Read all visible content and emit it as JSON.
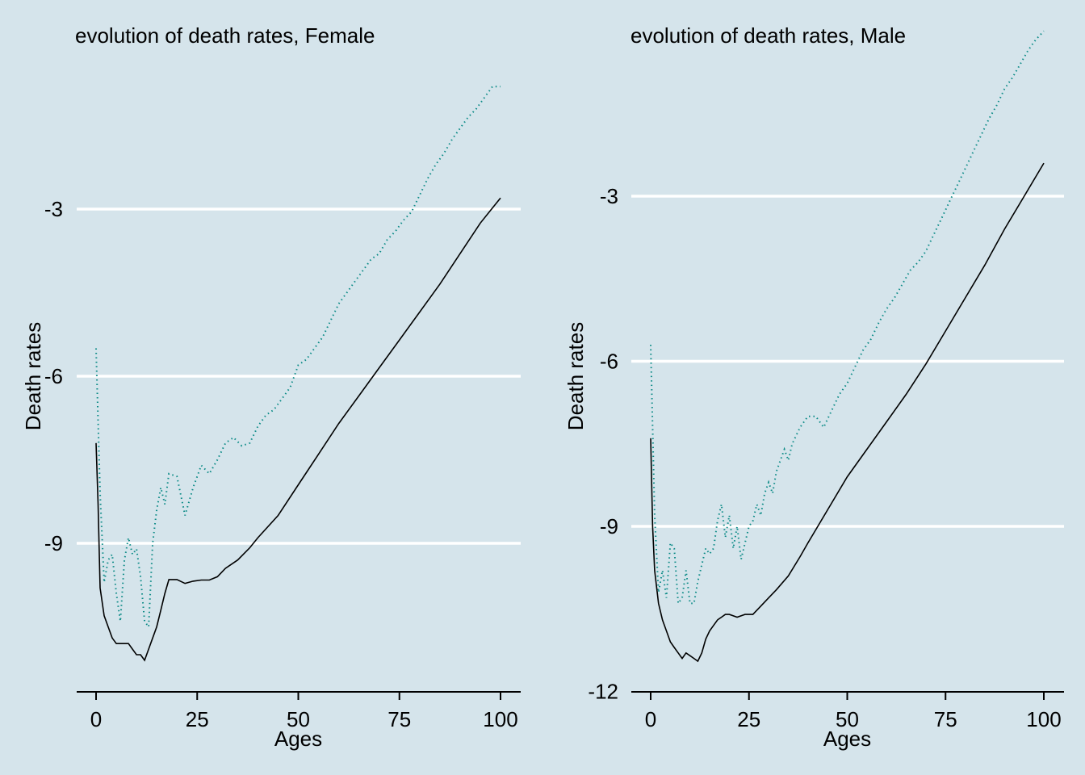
{
  "chart_data": [
    {
      "type": "line",
      "title": "evolution of death rates, Female",
      "xlabel": "Ages",
      "ylabel": "Death rates",
      "xlim": [
        0,
        100
      ],
      "ylim": [
        -11.6,
        -1.0
      ],
      "xticks": [
        0,
        25,
        50,
        75,
        100
      ],
      "yticks": [
        -3,
        -6,
        -9
      ],
      "grid": "horizontal",
      "series": [
        {
          "color": "#000000",
          "dash": "solid",
          "x": [
            0,
            0.5,
            1,
            2,
            3,
            4,
            5,
            6,
            7,
            8,
            9,
            10,
            11,
            12,
            13,
            14,
            15,
            16,
            17,
            18,
            20,
            22,
            24,
            26,
            28,
            30,
            32,
            35,
            38,
            40,
            45,
            50,
            55,
            60,
            65,
            70,
            75,
            80,
            85,
            90,
            95,
            100
          ],
          "y": [
            -7.2,
            -8.3,
            -9.8,
            -10.3,
            -10.5,
            -10.7,
            -10.8,
            -10.8,
            -10.8,
            -10.8,
            -10.9,
            -11.0,
            -11.0,
            -11.1,
            -10.9,
            -10.7,
            -10.5,
            -10.2,
            -9.9,
            -9.65,
            -9.65,
            -9.72,
            -9.68,
            -9.66,
            -9.66,
            -9.6,
            -9.45,
            -9.3,
            -9.08,
            -8.9,
            -8.5,
            -7.95,
            -7.4,
            -6.85,
            -6.35,
            -5.85,
            -5.35,
            -4.85,
            -4.35,
            -3.8,
            -3.25,
            -2.8
          ]
        },
        {
          "color": "#0a8a86",
          "dash": "dotted",
          "x": [
            0,
            0.5,
            1,
            2,
            3,
            4,
            5,
            6,
            7,
            8,
            9,
            10,
            11,
            12,
            13,
            14,
            15,
            16,
            17,
            18,
            20,
            22,
            24,
            26,
            28,
            30,
            32,
            34,
            36,
            38,
            40,
            42,
            44,
            46,
            48,
            50,
            52,
            54,
            56,
            58,
            60,
            62,
            64,
            66,
            68,
            70,
            72,
            74,
            76,
            78,
            80,
            82,
            84,
            86,
            88,
            90,
            92,
            94,
            96,
            98,
            100
          ],
          "y": [
            -5.5,
            -6.8,
            -8.1,
            -9.7,
            -9.3,
            -9.2,
            -9.9,
            -10.4,
            -9.3,
            -8.9,
            -9.2,
            -9.1,
            -9.6,
            -10.4,
            -10.5,
            -9.0,
            -8.4,
            -8.0,
            -8.3,
            -7.75,
            -7.8,
            -8.5,
            -8.0,
            -7.6,
            -7.75,
            -7.5,
            -7.2,
            -7.1,
            -7.25,
            -7.2,
            -6.9,
            -6.7,
            -6.6,
            -6.4,
            -6.2,
            -5.8,
            -5.7,
            -5.5,
            -5.3,
            -5.0,
            -4.7,
            -4.5,
            -4.3,
            -4.1,
            -3.9,
            -3.8,
            -3.55,
            -3.4,
            -3.2,
            -3.05,
            -2.75,
            -2.45,
            -2.2,
            -2.0,
            -1.75,
            -1.55,
            -1.35,
            -1.2,
            -1.0,
            -0.8,
            -0.8
          ]
        }
      ]
    },
    {
      "type": "line",
      "title": "evolution of death rates, Male",
      "xlabel": "Ages",
      "ylabel": "Death rates",
      "xlim": [
        0,
        100
      ],
      "ylim": [
        -12,
        -1.0
      ],
      "xticks": [
        0,
        25,
        50,
        75,
        100
      ],
      "yticks": [
        -3,
        -6,
        -9,
        -12
      ],
      "grid": "horizontal",
      "series": [
        {
          "color": "#000000",
          "dash": "solid",
          "x": [
            0,
            0.5,
            1,
            2,
            3,
            4,
            5,
            6,
            7,
            8,
            9,
            10,
            11,
            12,
            13,
            14,
            15,
            16,
            17,
            18,
            19,
            20,
            22,
            24,
            26,
            28,
            30,
            32,
            35,
            38,
            40,
            45,
            50,
            55,
            60,
            65,
            70,
            75,
            80,
            85,
            90,
            95,
            100
          ],
          "y": [
            -7.4,
            -9.0,
            -9.8,
            -10.4,
            -10.7,
            -10.9,
            -11.1,
            -11.2,
            -11.3,
            -11.4,
            -11.3,
            -11.35,
            -11.4,
            -11.45,
            -11.3,
            -11.05,
            -10.9,
            -10.8,
            -10.7,
            -10.65,
            -10.6,
            -10.6,
            -10.65,
            -10.6,
            -10.6,
            -10.45,
            -10.3,
            -10.15,
            -9.9,
            -9.55,
            -9.3,
            -8.7,
            -8.1,
            -7.6,
            -7.1,
            -6.6,
            -6.05,
            -5.45,
            -4.85,
            -4.25,
            -3.6,
            -3.0,
            -2.4
          ]
        },
        {
          "color": "#0a8a86",
          "dash": "dotted",
          "x": [
            0,
            0.5,
            1,
            2,
            3,
            4,
            5,
            6,
            7,
            8,
            9,
            10,
            11,
            12,
            13,
            14,
            15,
            16,
            17,
            18,
            19,
            20,
            21,
            22,
            23,
            24,
            25,
            26,
            27,
            28,
            29,
            30,
            31,
            32,
            33,
            34,
            35,
            36,
            38,
            40,
            42,
            44,
            46,
            48,
            50,
            52,
            54,
            56,
            58,
            60,
            62,
            64,
            66,
            68,
            70,
            72,
            74,
            76,
            78,
            80,
            82,
            84,
            86,
            88,
            90,
            92,
            94,
            96,
            98,
            100
          ],
          "y": [
            -5.7,
            -7.2,
            -8.8,
            -10.2,
            -9.8,
            -10.3,
            -9.3,
            -9.4,
            -10.4,
            -10.3,
            -9.8,
            -10.4,
            -10.4,
            -10.0,
            -9.7,
            -9.4,
            -9.5,
            -9.4,
            -8.9,
            -8.6,
            -9.2,
            -8.8,
            -9.4,
            -9.0,
            -9.6,
            -9.3,
            -9.0,
            -8.9,
            -8.6,
            -8.8,
            -8.4,
            -8.2,
            -8.4,
            -8.0,
            -7.8,
            -7.6,
            -7.8,
            -7.5,
            -7.2,
            -7.0,
            -7.0,
            -7.2,
            -6.9,
            -6.6,
            -6.4,
            -6.1,
            -5.8,
            -5.6,
            -5.3,
            -5.05,
            -4.85,
            -4.6,
            -4.35,
            -4.2,
            -4.0,
            -3.7,
            -3.4,
            -3.1,
            -2.8,
            -2.5,
            -2.2,
            -1.9,
            -1.6,
            -1.35,
            -1.05,
            -0.85,
            -0.6,
            -0.35,
            -0.15,
            0.0
          ]
        }
      ]
    }
  ]
}
